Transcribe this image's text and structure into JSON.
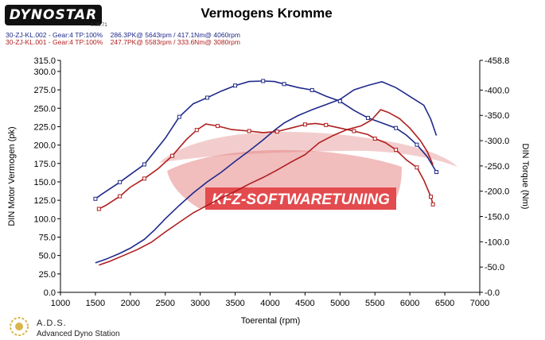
{
  "header": {
    "brand_logo_text": "DYNOSTAR",
    "brand_logo_sub": "S.38.71",
    "title": "Vermogens Kromme",
    "runs": [
      {
        "label": "30-ZJ-KL.002 - Gear:4 TP:100%",
        "summary": "286.3PK@ 5643rpm / 417.1Nm@ 4060rpm"
      },
      {
        "label": "30-ZJ-KL.001 - Gear:4 TP:100%",
        "summary": "247.7PK@ 5583rpm / 333.6Nm@ 3080rpm"
      }
    ]
  },
  "watermark": {
    "text": "KFZ-SOFTWARETUNING"
  },
  "footer": {
    "logo_name": "A.D.S.",
    "logo_subtitle": "Advanced Dyno Station"
  },
  "colors": {
    "run1": "#1f2a8a",
    "run2": "#b01e1e",
    "watermark": "#e0383b"
  },
  "chart_data": {
    "type": "line",
    "xlabel": "Toerental (rpm)",
    "ylabel_left": "DIN Motor Vermogen (pk)",
    "ylabel_right": "DIN Torque (Nm)",
    "xlim": [
      1000,
      7000
    ],
    "ylim_left": [
      0,
      315
    ],
    "ylim_right": [
      0,
      458.8
    ],
    "x_ticks": [
      "1000",
      "1500",
      "2000",
      "2500",
      "3000",
      "3500",
      "4000",
      "4500",
      "5000",
      "5500",
      "6000",
      "6500",
      "7000"
    ],
    "y_ticks_left": [
      "0.0",
      "25.0",
      "50.0",
      "75.0",
      "100.0",
      "125.0",
      "150.0",
      "175.0",
      "200.0",
      "225.0",
      "250.0",
      "275.0",
      "300.0",
      "315.0"
    ],
    "y_ticks_right": [
      "0.0",
      "50.0",
      "100.0",
      "150.0",
      "200.0",
      "250.0",
      "300.0",
      "350.0",
      "400.0",
      "458.8"
    ],
    "grid": false,
    "series": [
      {
        "run": 1,
        "quantity": "power",
        "axis": "left",
        "x": [
          1500,
          1650,
          1850,
          2000,
          2200,
          2350,
          2500,
          2700,
          2900,
          3100,
          3300,
          3500,
          3700,
          3900,
          4060,
          4200,
          4400,
          4600,
          4800,
          5000,
          5200,
          5400,
          5600,
          5800,
          6000,
          6200,
          6300,
          6380
        ],
        "y": [
          40,
          45,
          53,
          60,
          72,
          85,
          100,
          118,
          135,
          150,
          163,
          178,
          192,
          207,
          220,
          230,
          240,
          248,
          255,
          262,
          275,
          281,
          286,
          278,
          266,
          254,
          235,
          213
        ]
      },
      {
        "run": 1,
        "quantity": "torque",
        "axis": "right",
        "x": [
          1500,
          1600,
          1850,
          2000,
          2200,
          2500,
          2700,
          2900,
          3100,
          3300,
          3500,
          3700,
          3900,
          4060,
          4200,
          4400,
          4600,
          4800,
          5000,
          5200,
          5400,
          5600,
          5800,
          5950,
          6100,
          6250,
          6380
        ],
        "y": [
          185,
          195,
          218,
          233,
          253,
          305,
          347,
          373,
          385,
          398,
          409,
          417,
          418,
          417,
          412,
          405,
          400,
          388,
          378,
          360,
          345,
          335,
          325,
          311,
          292,
          268,
          238
        ]
      },
      {
        "run": 2,
        "quantity": "power",
        "axis": "left",
        "x": [
          1550,
          1700,
          1900,
          2100,
          2300,
          2500,
          2700,
          2900,
          3100,
          3300,
          3500,
          3700,
          3900,
          4100,
          4300,
          4500,
          4700,
          4900,
          5100,
          5300,
          5450,
          5583,
          5700,
          5850,
          6000,
          6150,
          6250,
          6330
        ],
        "y": [
          37,
          42,
          50,
          58,
          68,
          82,
          95,
          108,
          118,
          128,
          137,
          147,
          156,
          166,
          177,
          187,
          203,
          213,
          221,
          226,
          234,
          248,
          244,
          236,
          223,
          206,
          191,
          173
        ]
      },
      {
        "run": 2,
        "quantity": "torque",
        "axis": "right",
        "x": [
          1550,
          1650,
          1850,
          2000,
          2200,
          2400,
          2600,
          2800,
          2950,
          3080,
          3250,
          3450,
          3700,
          3900,
          4100,
          4300,
          4500,
          4650,
          4800,
          5000,
          5200,
          5400,
          5500,
          5650,
          5800,
          5950,
          6100,
          6200,
          6300,
          6330
        ],
        "y": [
          165,
          172,
          190,
          208,
          225,
          245,
          270,
          302,
          321,
          333,
          329,
          322,
          319,
          316,
          318,
          325,
          332,
          334,
          331,
          325,
          319,
          312,
          304,
          296,
          282,
          262,
          247,
          222,
          189,
          174
        ]
      }
    ]
  }
}
